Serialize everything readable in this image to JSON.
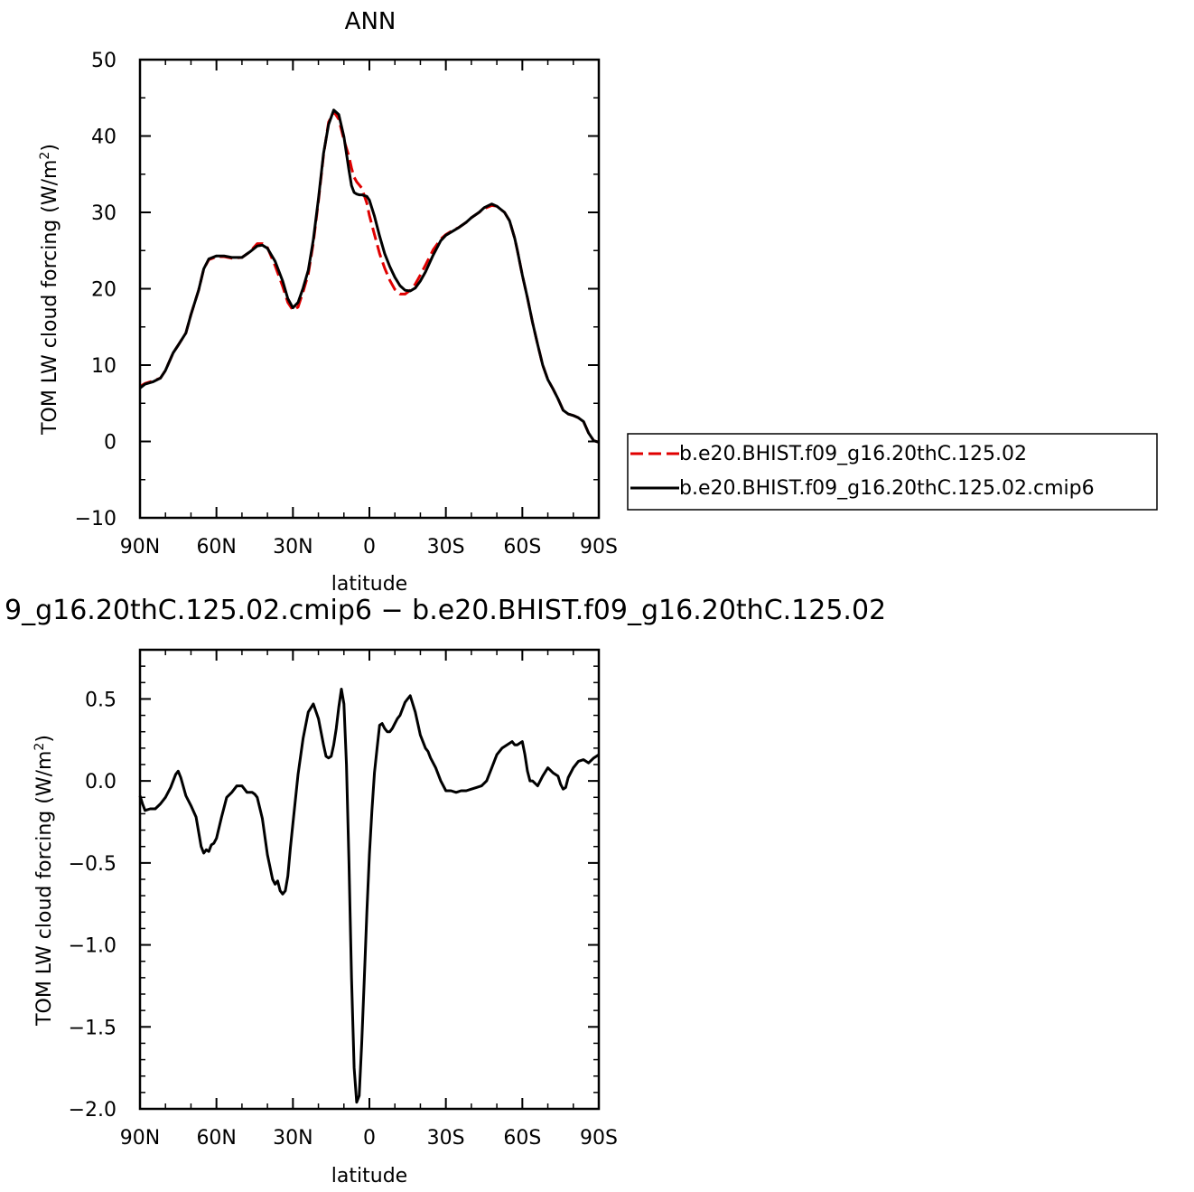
{
  "chart_data": [
    {
      "type": "line",
      "title": "ANN",
      "xlabel": "latitude",
      "ylabel": "TOM LW cloud forcing (W/m",
      "ylabel_sup": "2",
      "ylabel_end": ")",
      "xlim": [
        90,
        -90
      ],
      "ylim": [
        -10,
        50
      ],
      "x_ticks": [
        90,
        60,
        30,
        0,
        -30,
        -60,
        -90
      ],
      "x_tick_labels": [
        "90N",
        "60N",
        "30N",
        "0",
        "30S",
        "60S",
        "90S"
      ],
      "y_ticks": [
        -10,
        0,
        10,
        20,
        30,
        40,
        50
      ],
      "y_tick_labels": [
        "−10",
        "0",
        "10",
        "20",
        "30",
        "40",
        "50"
      ],
      "legend_position": "right",
      "series": [
        {
          "name": "b.e20.BHIST.f09_g16.20thC.125.02",
          "color": "#e00000",
          "dash": "dashed",
          "x": [
            90,
            88,
            85,
            82,
            80,
            77,
            75,
            72,
            70,
            67,
            65,
            63,
            60,
            57,
            54,
            50,
            47,
            44,
            42,
            40,
            37,
            34,
            32,
            30,
            28,
            26,
            24,
            22,
            20,
            18,
            16,
            14,
            12,
            10,
            8,
            7,
            6,
            5,
            4,
            3,
            1,
            0,
            -2,
            -4,
            -6,
            -8,
            -10,
            -12,
            -14,
            -16,
            -18,
            -20,
            -22,
            -25,
            -28,
            -30,
            -33,
            -35,
            -38,
            -40,
            -43,
            -45,
            -48,
            -50,
            -53,
            -55,
            -57,
            -58,
            -60,
            -62,
            -64,
            -66,
            -68,
            -70,
            -72,
            -74,
            -76,
            -78,
            -80,
            -82,
            -84,
            -86,
            -88,
            -90
          ],
          "y": [
            7.2,
            7.6,
            7.9,
            8.3,
            9.3,
            11.6,
            12.6,
            14.2,
            16.6,
            19.8,
            22.6,
            23.8,
            24.2,
            24.2,
            24.0,
            24.1,
            24.8,
            25.9,
            25.9,
            25.4,
            23.0,
            20.3,
            18.2,
            17.2,
            17.6,
            19.6,
            21.9,
            26.0,
            31.5,
            37.5,
            41.8,
            43.2,
            42.2,
            39.5,
            37.3,
            35.8,
            34.6,
            34.0,
            33.6,
            33.2,
            31.2,
            29.6,
            27.1,
            24.6,
            22.7,
            21.1,
            19.9,
            19.3,
            19.3,
            19.8,
            20.6,
            21.8,
            23.1,
            25.1,
            26.5,
            27.1,
            27.7,
            28.0,
            28.7,
            29.3,
            30.0,
            30.5,
            30.9,
            30.8,
            30.0,
            28.9,
            26.6,
            25.1,
            21.8,
            18.8,
            15.6,
            12.7,
            10.0,
            8.1,
            6.9,
            5.6,
            4.1,
            3.6,
            3.4,
            3.1,
            2.6,
            1.1,
            0.1,
            -0.1
          ]
        },
        {
          "name": "b.e20.BHIST.f09_g16.20thC.125.02.cmip6",
          "color": "#000000",
          "dash": "solid",
          "x": [
            90,
            88,
            85,
            82,
            80,
            77,
            75,
            72,
            70,
            67,
            65,
            63,
            60,
            57,
            54,
            50,
            47,
            44,
            42,
            40,
            37,
            34,
            32,
            30,
            28,
            26,
            24,
            22,
            20,
            18,
            16,
            14,
            12,
            10,
            8,
            7,
            6,
            5,
            4,
            3,
            1,
            0,
            -2,
            -4,
            -6,
            -8,
            -10,
            -12,
            -14,
            -16,
            -18,
            -20,
            -22,
            -25,
            -28,
            -30,
            -33,
            -35,
            -38,
            -40,
            -43,
            -45,
            -48,
            -50,
            -53,
            -55,
            -57,
            -58,
            -60,
            -62,
            -64,
            -66,
            -68,
            -70,
            -72,
            -74,
            -76,
            -78,
            -80,
            -82,
            -84,
            -86,
            -88,
            -90
          ],
          "y": [
            7.0,
            7.5,
            7.8,
            8.3,
            9.3,
            11.6,
            12.6,
            14.2,
            16.6,
            19.8,
            22.6,
            23.9,
            24.3,
            24.3,
            24.1,
            24.1,
            24.8,
            25.6,
            25.7,
            25.3,
            23.6,
            21.0,
            18.7,
            17.5,
            18.2,
            20.1,
            22.4,
            26.4,
            31.8,
            37.7,
            41.5,
            43.4,
            42.8,
            39.9,
            35.5,
            33.5,
            32.6,
            32.4,
            32.3,
            32.3,
            32.1,
            31.6,
            29.5,
            26.9,
            24.6,
            22.9,
            21.5,
            20.4,
            19.8,
            19.7,
            20.1,
            21.0,
            22.2,
            24.4,
            26.3,
            27.0,
            27.6,
            28.0,
            28.7,
            29.3,
            30.0,
            30.6,
            31.1,
            30.8,
            30.0,
            28.9,
            26.6,
            25.1,
            21.8,
            18.8,
            15.6,
            12.7,
            10.0,
            8.1,
            6.9,
            5.6,
            4.1,
            3.6,
            3.4,
            3.1,
            2.6,
            1.1,
            0.1,
            -0.1
          ]
        }
      ]
    },
    {
      "type": "line",
      "title": "9_g16.20thC.125.02.cmip6 − b.e20.BHIST.f09_g16.20thC.125.02",
      "xlabel": "latitude",
      "ylabel": "TOM LW cloud forcing (W/m",
      "ylabel_sup": "2",
      "ylabel_end": ")",
      "xlim": [
        90,
        -90
      ],
      "ylim": [
        -2.0,
        0.8
      ],
      "x_ticks": [
        90,
        60,
        30,
        0,
        -30,
        -60,
        -90
      ],
      "x_tick_labels": [
        "90N",
        "60N",
        "30N",
        "0",
        "30S",
        "60S",
        "90S"
      ],
      "y_ticks": [
        -2.0,
        -1.5,
        -1.0,
        -0.5,
        0.0,
        0.5
      ],
      "y_tick_labels": [
        "−2.0",
        "−1.5",
        "−1.0",
        "−0.5",
        "0.0",
        "0.5"
      ],
      "series": [
        {
          "color": "#000000",
          "dash": "solid",
          "x": [
            90,
            89,
            88,
            86,
            84,
            82,
            80,
            78,
            76,
            75,
            74,
            72,
            70,
            68,
            66,
            65,
            64,
            63,
            62,
            61,
            60,
            58,
            56,
            54,
            52,
            50,
            48,
            46,
            45,
            44,
            42,
            40,
            38,
            37,
            36,
            35,
            34,
            33,
            32,
            31,
            30,
            28,
            26,
            24,
            22,
            20,
            19,
            18,
            17,
            16,
            15,
            14,
            13,
            12,
            11,
            10,
            9,
            8,
            7,
            6,
            5,
            4,
            3,
            2,
            1,
            0,
            -1,
            -2,
            -3,
            -4,
            -5,
            -6,
            -7,
            -8,
            -9,
            -10,
            -11,
            -12,
            -13,
            -14,
            -15,
            -16,
            -18,
            -20,
            -22,
            -23,
            -24,
            -26,
            -28,
            -30,
            -32,
            -34,
            -36,
            -38,
            -40,
            -42,
            -44,
            -46,
            -48,
            -50,
            -52,
            -54,
            -56,
            -57,
            -58,
            -59,
            -60,
            -61,
            -62,
            -63,
            -64,
            -66,
            -68,
            -70,
            -72,
            -74,
            -75,
            -76,
            -77,
            -78,
            -80,
            -82,
            -84,
            -86,
            -88,
            -90
          ],
          "y": [
            -0.09,
            -0.14,
            -0.18,
            -0.17,
            -0.17,
            -0.14,
            -0.1,
            -0.04,
            0.04,
            0.06,
            0.02,
            -0.09,
            -0.15,
            -0.22,
            -0.4,
            -0.44,
            -0.42,
            -0.43,
            -0.39,
            -0.38,
            -0.35,
            -0.22,
            -0.1,
            -0.07,
            -0.03,
            -0.03,
            -0.07,
            -0.07,
            -0.08,
            -0.1,
            -0.23,
            -0.45,
            -0.6,
            -0.63,
            -0.61,
            -0.67,
            -0.69,
            -0.67,
            -0.58,
            -0.41,
            -0.26,
            0.04,
            0.26,
            0.42,
            0.47,
            0.38,
            0.3,
            0.22,
            0.15,
            0.14,
            0.15,
            0.22,
            0.32,
            0.45,
            0.56,
            0.47,
            0.1,
            -0.5,
            -1.2,
            -1.75,
            -1.96,
            -1.92,
            -1.6,
            -1.2,
            -0.8,
            -0.45,
            -0.18,
            0.05,
            0.2,
            0.34,
            0.35,
            0.32,
            0.3,
            0.3,
            0.32,
            0.35,
            0.38,
            0.4,
            0.44,
            0.48,
            0.5,
            0.52,
            0.42,
            0.28,
            0.2,
            0.18,
            0.14,
            0.08,
            0.0,
            -0.06,
            -0.06,
            -0.07,
            -0.06,
            -0.06,
            -0.05,
            -0.04,
            -0.03,
            0.0,
            0.08,
            0.16,
            0.2,
            0.22,
            0.24,
            0.22,
            0.22,
            0.23,
            0.24,
            0.16,
            0.06,
            0.0,
            0.0,
            -0.03,
            0.03,
            0.08,
            0.05,
            0.03,
            -0.02,
            -0.05,
            -0.04,
            0.02,
            0.08,
            0.12,
            0.13,
            0.11,
            0.14,
            0.16
          ]
        }
      ]
    }
  ]
}
